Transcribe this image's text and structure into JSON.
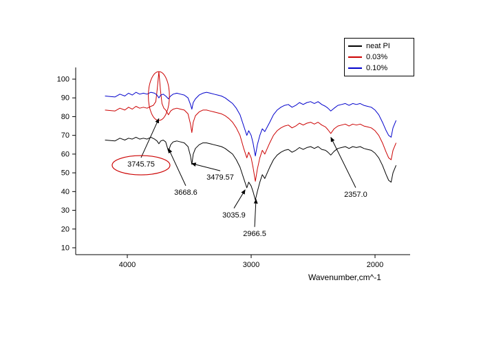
{
  "chart_data": {
    "type": "line",
    "title": "",
    "xlabel": "Wavenumber,cm^-1",
    "ylabel": "",
    "x_axis_reversed": true,
    "xlim": [
      4200,
      1800
    ],
    "ylim": [
      5,
      105
    ],
    "grid": false,
    "legend_position": "top-right",
    "xticks": [
      4000,
      3000,
      2000
    ],
    "yticks": [
      10,
      20,
      30,
      40,
      50,
      60,
      70,
      80,
      90,
      100
    ],
    "series": [
      {
        "name": "neat PI",
        "color": "#000000",
        "points": [
          [
            4180,
            67.5
          ],
          [
            4100,
            67
          ],
          [
            4060,
            68.5
          ],
          [
            4020,
            67.5
          ],
          [
            3990,
            68.5
          ],
          [
            3960,
            68
          ],
          [
            3930,
            69
          ],
          [
            3900,
            68
          ],
          [
            3870,
            68.5
          ],
          [
            3840,
            68
          ],
          [
            3810,
            69
          ],
          [
            3780,
            68
          ],
          [
            3760,
            67
          ],
          [
            3745,
            65.5
          ],
          [
            3730,
            67
          ],
          [
            3710,
            67.5
          ],
          [
            3690,
            66.5
          ],
          [
            3668,
            61.5
          ],
          [
            3650,
            65
          ],
          [
            3630,
            66.5
          ],
          [
            3600,
            67
          ],
          [
            3570,
            66.5
          ],
          [
            3540,
            66
          ],
          [
            3510,
            64
          ],
          [
            3490,
            59
          ],
          [
            3479,
            54.5
          ],
          [
            3468,
            60
          ],
          [
            3450,
            63
          ],
          [
            3420,
            65
          ],
          [
            3390,
            66
          ],
          [
            3360,
            66
          ],
          [
            3330,
            65.5
          ],
          [
            3300,
            65
          ],
          [
            3270,
            64.5
          ],
          [
            3240,
            64
          ],
          [
            3210,
            63
          ],
          [
            3180,
            61.5
          ],
          [
            3150,
            60
          ],
          [
            3120,
            57
          ],
          [
            3090,
            53
          ],
          [
            3060,
            47
          ],
          [
            3035,
            42
          ],
          [
            3020,
            45
          ],
          [
            3000,
            43
          ],
          [
            2985,
            40
          ],
          [
            2966,
            35.5
          ],
          [
            2950,
            40
          ],
          [
            2930,
            45
          ],
          [
            2910,
            49
          ],
          [
            2890,
            47
          ],
          [
            2870,
            50
          ],
          [
            2850,
            53
          ],
          [
            2820,
            57
          ],
          [
            2790,
            59.5
          ],
          [
            2760,
            61
          ],
          [
            2730,
            62
          ],
          [
            2700,
            62.5
          ],
          [
            2670,
            61
          ],
          [
            2640,
            62
          ],
          [
            2610,
            63.5
          ],
          [
            2580,
            62.5
          ],
          [
            2550,
            63.5
          ],
          [
            2520,
            64
          ],
          [
            2490,
            63
          ],
          [
            2460,
            64
          ],
          [
            2430,
            62.5
          ],
          [
            2400,
            62
          ],
          [
            2380,
            61
          ],
          [
            2357,
            59.5
          ],
          [
            2330,
            61.5
          ],
          [
            2300,
            63
          ],
          [
            2270,
            63.5
          ],
          [
            2240,
            64
          ],
          [
            2210,
            63
          ],
          [
            2180,
            64
          ],
          [
            2150,
            63.5
          ],
          [
            2120,
            64
          ],
          [
            2090,
            63
          ],
          [
            2060,
            62.5
          ],
          [
            2030,
            62
          ],
          [
            2000,
            60.5
          ],
          [
            1970,
            58
          ],
          [
            1940,
            54
          ],
          [
            1910,
            49
          ],
          [
            1890,
            46
          ],
          [
            1870,
            45
          ],
          [
            1855,
            50
          ],
          [
            1830,
            54
          ]
        ]
      },
      {
        "name": "0.03%",
        "color": "#cc0000",
        "points": [
          [
            4180,
            83.5
          ],
          [
            4100,
            83
          ],
          [
            4060,
            84.5
          ],
          [
            4020,
            83.5
          ],
          [
            3990,
            85
          ],
          [
            3960,
            84
          ],
          [
            3930,
            85.5
          ],
          [
            3900,
            84.5
          ],
          [
            3870,
            85
          ],
          [
            3840,
            84.5
          ],
          [
            3810,
            85.5
          ],
          [
            3790,
            86
          ],
          [
            3770,
            88
          ],
          [
            3758,
            95
          ],
          [
            3745,
            104
          ],
          [
            3732,
            94
          ],
          [
            3720,
            87
          ],
          [
            3705,
            84.5
          ],
          [
            3690,
            83.5
          ],
          [
            3668,
            81
          ],
          [
            3650,
            83
          ],
          [
            3630,
            84
          ],
          [
            3600,
            84.5
          ],
          [
            3570,
            84
          ],
          [
            3540,
            83.5
          ],
          [
            3510,
            81.5
          ],
          [
            3490,
            76
          ],
          [
            3479,
            71.5
          ],
          [
            3468,
            77
          ],
          [
            3450,
            80.5
          ],
          [
            3420,
            82.5
          ],
          [
            3390,
            83.5
          ],
          [
            3360,
            83.5
          ],
          [
            3330,
            83
          ],
          [
            3300,
            82.5
          ],
          [
            3270,
            82
          ],
          [
            3240,
            81.5
          ],
          [
            3210,
            80.5
          ],
          [
            3180,
            79
          ],
          [
            3150,
            77
          ],
          [
            3120,
            74
          ],
          [
            3090,
            70
          ],
          [
            3060,
            63
          ],
          [
            3035,
            58
          ],
          [
            3020,
            61
          ],
          [
            3000,
            58
          ],
          [
            2985,
            53
          ],
          [
            2966,
            45.5
          ],
          [
            2950,
            52
          ],
          [
            2930,
            58
          ],
          [
            2910,
            62
          ],
          [
            2890,
            60
          ],
          [
            2870,
            63
          ],
          [
            2850,
            66
          ],
          [
            2820,
            70
          ],
          [
            2790,
            72.5
          ],
          [
            2760,
            74
          ],
          [
            2730,
            75
          ],
          [
            2700,
            75.5
          ],
          [
            2670,
            74
          ],
          [
            2640,
            75
          ],
          [
            2610,
            76.5
          ],
          [
            2580,
            75.5
          ],
          [
            2550,
            76.5
          ],
          [
            2520,
            77
          ],
          [
            2490,
            76
          ],
          [
            2460,
            77
          ],
          [
            2430,
            75.5
          ],
          [
            2400,
            74.5
          ],
          [
            2380,
            73
          ],
          [
            2357,
            71
          ],
          [
            2330,
            73.5
          ],
          [
            2300,
            75
          ],
          [
            2270,
            75.5
          ],
          [
            2240,
            76
          ],
          [
            2210,
            75
          ],
          [
            2180,
            76
          ],
          [
            2150,
            75.5
          ],
          [
            2120,
            76
          ],
          [
            2090,
            75
          ],
          [
            2060,
            74.5
          ],
          [
            2030,
            74
          ],
          [
            2000,
            72.5
          ],
          [
            1970,
            70
          ],
          [
            1940,
            66
          ],
          [
            1910,
            61
          ],
          [
            1890,
            58
          ],
          [
            1870,
            57
          ],
          [
            1855,
            62
          ],
          [
            1830,
            66
          ]
        ]
      },
      {
        "name": "0.10%",
        "color": "#0000cc",
        "points": [
          [
            4180,
            91
          ],
          [
            4100,
            90.5
          ],
          [
            4060,
            92
          ],
          [
            4020,
            91
          ],
          [
            3990,
            92.5
          ],
          [
            3960,
            91.5
          ],
          [
            3930,
            93
          ],
          [
            3900,
            92
          ],
          [
            3870,
            92.5
          ],
          [
            3840,
            92
          ],
          [
            3810,
            93
          ],
          [
            3780,
            92.5
          ],
          [
            3760,
            91.5
          ],
          [
            3745,
            90
          ],
          [
            3730,
            91.5
          ],
          [
            3710,
            92
          ],
          [
            3690,
            91
          ],
          [
            3668,
            89.5
          ],
          [
            3650,
            91
          ],
          [
            3630,
            92
          ],
          [
            3600,
            92.5
          ],
          [
            3570,
            92
          ],
          [
            3540,
            91.5
          ],
          [
            3510,
            90
          ],
          [
            3490,
            86.5
          ],
          [
            3479,
            84
          ],
          [
            3468,
            87.5
          ],
          [
            3450,
            89.5
          ],
          [
            3420,
            91.5
          ],
          [
            3390,
            92.5
          ],
          [
            3360,
            93
          ],
          [
            3330,
            92.5
          ],
          [
            3300,
            92
          ],
          [
            3270,
            91.5
          ],
          [
            3240,
            91
          ],
          [
            3210,
            90
          ],
          [
            3180,
            88.5
          ],
          [
            3150,
            87
          ],
          [
            3120,
            84.5
          ],
          [
            3090,
            81
          ],
          [
            3060,
            75
          ],
          [
            3035,
            70
          ],
          [
            3020,
            72.5
          ],
          [
            3000,
            70
          ],
          [
            2985,
            66
          ],
          [
            2966,
            59
          ],
          [
            2950,
            65
          ],
          [
            2930,
            70
          ],
          [
            2910,
            73.5
          ],
          [
            2890,
            72
          ],
          [
            2870,
            74.5
          ],
          [
            2850,
            77
          ],
          [
            2820,
            81
          ],
          [
            2790,
            83.5
          ],
          [
            2760,
            85
          ],
          [
            2730,
            86
          ],
          [
            2700,
            86.5
          ],
          [
            2670,
            85
          ],
          [
            2640,
            86
          ],
          [
            2610,
            87.5
          ],
          [
            2580,
            86.5
          ],
          [
            2550,
            87.5
          ],
          [
            2520,
            88
          ],
          [
            2490,
            87
          ],
          [
            2460,
            88
          ],
          [
            2430,
            86.5
          ],
          [
            2400,
            85.5
          ],
          [
            2380,
            84.5
          ],
          [
            2357,
            83
          ],
          [
            2330,
            84.5
          ],
          [
            2300,
            86
          ],
          [
            2270,
            86.5
          ],
          [
            2240,
            87
          ],
          [
            2210,
            86
          ],
          [
            2180,
            87
          ],
          [
            2150,
            86.5
          ],
          [
            2120,
            87
          ],
          [
            2090,
            86
          ],
          [
            2060,
            85.5
          ],
          [
            2030,
            85
          ],
          [
            2000,
            83.5
          ],
          [
            1970,
            81
          ],
          [
            1940,
            77
          ],
          [
            1910,
            72.5
          ],
          [
            1890,
            70
          ],
          [
            1870,
            69
          ],
          [
            1855,
            74
          ],
          [
            1830,
            78
          ]
        ]
      }
    ],
    "annotations": [
      {
        "label": "3745.75",
        "lx": 3889,
        "ly": 57,
        "tx": 3745,
        "ty": 79,
        "oval": true
      },
      {
        "label": "3668.6",
        "lx": 3528,
        "ly": 42,
        "tx": 3668,
        "ty": 63,
        "oval": false
      },
      {
        "label": "3479.57",
        "lx": 3250,
        "ly": 50,
        "tx": 3482,
        "ty": 55,
        "oval": false
      },
      {
        "label": "3035.9",
        "lx": 3139,
        "ly": 30,
        "tx": 3048,
        "ty": 41,
        "oval": false
      },
      {
        "label": "2966.5",
        "lx": 2972,
        "ly": 20,
        "tx": 2961,
        "ty": 36,
        "oval": false
      },
      {
        "label": "2357.0",
        "lx": 2156,
        "ly": 41,
        "tx": 2357,
        "ty": 69,
        "oval": false
      }
    ],
    "ellipses": [
      {
        "wn": 3745,
        "val": 91,
        "rx_wn": 85,
        "ry_val": 13,
        "color": "#cc0000"
      }
    ],
    "annotation_oval_color": "#cc0000"
  }
}
